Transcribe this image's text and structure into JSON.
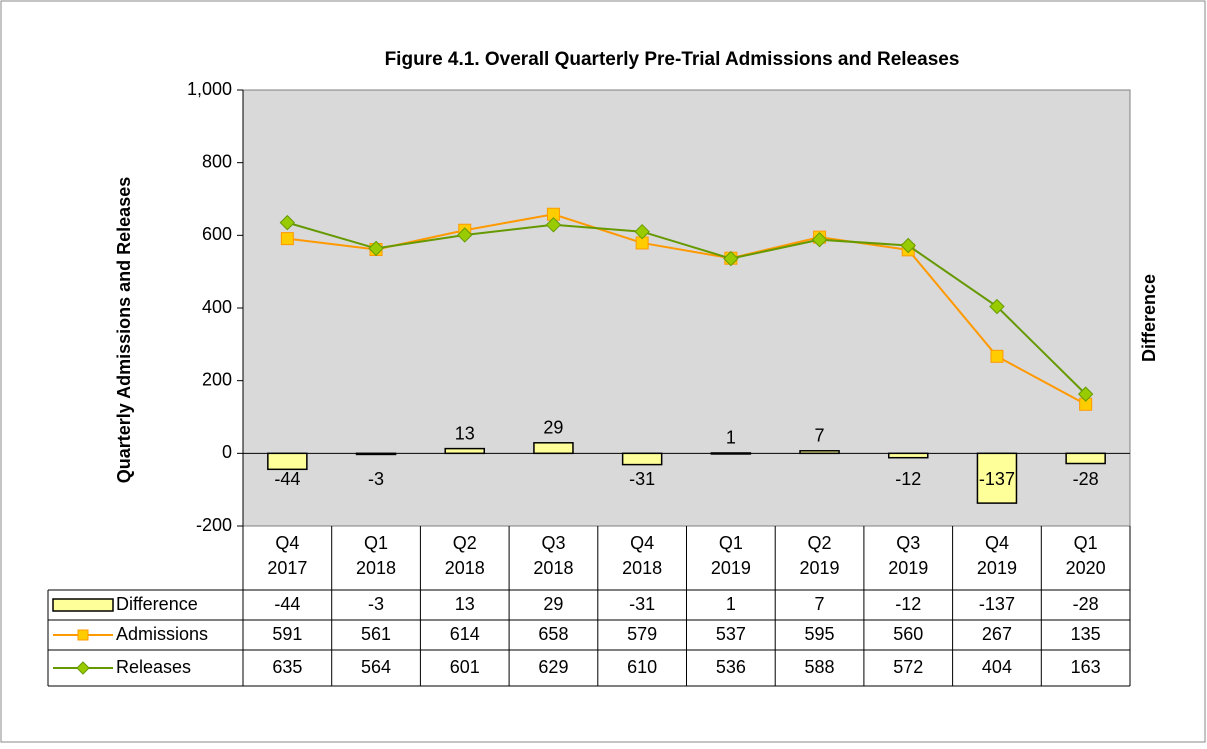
{
  "chart_data": {
    "type": "line",
    "title": "Figure 4.1. Overall Quarterly Pre-Trial Admissions and Releases",
    "y_label": "Quarterly Admissions and Releases",
    "y2_label": "Difference",
    "categories": [
      "Q4 2017",
      "Q1 2018",
      "Q2 2018",
      "Q3 2018",
      "Q4 2018",
      "Q1 2019",
      "Q2 2019",
      "Q3 2019",
      "Q4 2019",
      "Q1 2020"
    ],
    "series": [
      {
        "name": "Difference",
        "type": "bar",
        "color": "#ffff99",
        "values": [
          -44,
          -3,
          13,
          29,
          -31,
          1,
          7,
          -12,
          -137,
          -28
        ]
      },
      {
        "name": "Admissions",
        "type": "line",
        "marker": "square",
        "color": "#ff9900",
        "marker_color": "#ffcc00",
        "values": [
          591,
          561,
          614,
          658,
          579,
          537,
          595,
          560,
          267,
          135
        ]
      },
      {
        "name": "Releases",
        "type": "line",
        "marker": "diamond",
        "color": "#669900",
        "marker_color": "#99cc00",
        "values": [
          635,
          564,
          601,
          629,
          610,
          536,
          588,
          572,
          404,
          163
        ]
      }
    ],
    "ylim": [
      -200,
      1000
    ],
    "yticks": [
      -200,
      0,
      200,
      400,
      600,
      800,
      {
        "value": 1000,
        "label": "1,000"
      }
    ],
    "grid": false
  }
}
